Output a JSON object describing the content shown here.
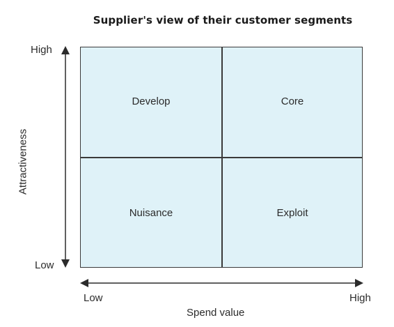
{
  "title": "Supplier's view of their customer segments",
  "quadrants": {
    "top_left": "Develop",
    "top_right": "Core",
    "bottom_left": "Nuisance",
    "bottom_right": "Exploit"
  },
  "y_axis": {
    "title": "Attractiveness",
    "high_label": "High",
    "low_label": "Low"
  },
  "x_axis": {
    "title": "Spend value",
    "low_label": "Low",
    "high_label": "High"
  },
  "colors": {
    "quadrant_fill": "#dff2f8",
    "lines": "#3a3a3a"
  }
}
